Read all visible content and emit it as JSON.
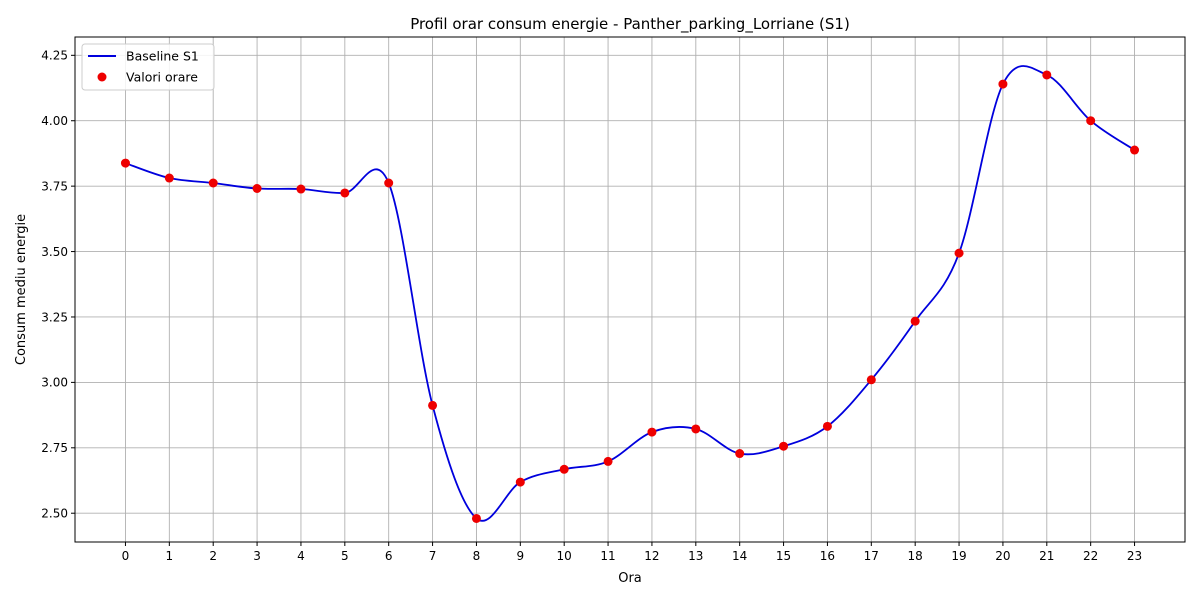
{
  "chart_data": {
    "type": "line",
    "title": "Profil orar consum energie - Panther_parking_Lorriane (S1)",
    "xlabel": "Ora",
    "ylabel": "Consum mediu energie",
    "x": [
      0,
      1,
      2,
      3,
      4,
      5,
      6,
      7,
      8,
      9,
      10,
      11,
      12,
      13,
      14,
      15,
      16,
      17,
      18,
      19,
      20,
      21,
      22,
      23
    ],
    "xticks": [
      "0",
      "1",
      "2",
      "3",
      "4",
      "5",
      "6",
      "7",
      "8",
      "9",
      "10",
      "11",
      "12",
      "13",
      "14",
      "15",
      "16",
      "17",
      "18",
      "19",
      "20",
      "21",
      "22",
      "23"
    ],
    "yticks": [
      "2.50",
      "2.75",
      "3.00",
      "3.25",
      "3.50",
      "3.75",
      "4.00",
      "4.25"
    ],
    "ylim": [
      2.39,
      4.32
    ],
    "xlim": [
      -1.15,
      24.15
    ],
    "grid": true,
    "legend_position": "top-left",
    "series": [
      {
        "name": "Baseline S1",
        "kind": "line",
        "color": "#0000dd",
        "values": [
          3.838,
          3.781,
          3.762,
          3.741,
          3.739,
          3.724,
          3.762,
          2.912,
          2.48,
          2.619,
          2.668,
          2.698,
          2.81,
          2.822,
          2.728,
          2.756,
          2.832,
          3.01,
          3.234,
          3.494,
          4.14,
          4.175,
          4.0,
          3.888
        ]
      },
      {
        "name": "Valori orare",
        "kind": "scatter",
        "color": "#ee0000",
        "values": [
          3.838,
          3.781,
          3.762,
          3.741,
          3.739,
          3.724,
          3.762,
          2.912,
          2.48,
          2.619,
          2.668,
          2.698,
          2.81,
          2.822,
          2.728,
          2.756,
          2.832,
          3.01,
          3.234,
          3.494,
          4.14,
          4.175,
          4.0,
          3.888
        ]
      }
    ]
  }
}
